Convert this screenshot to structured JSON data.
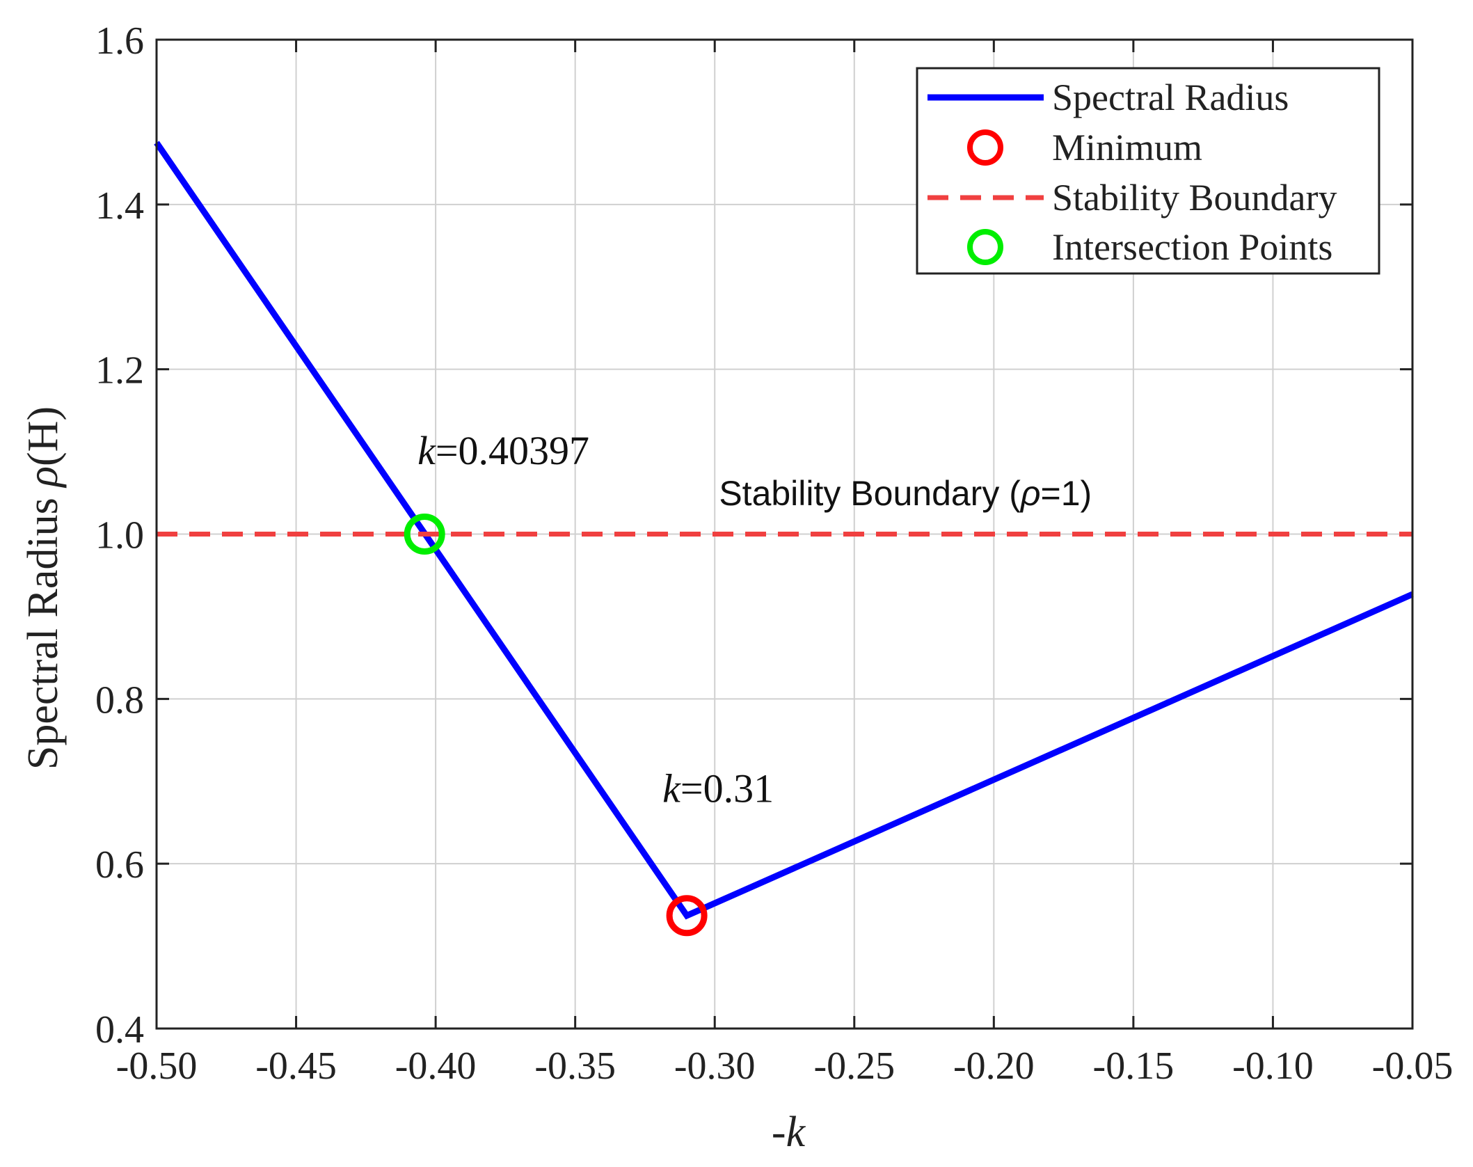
{
  "chart_data": {
    "type": "line",
    "title": "",
    "xlabel": "-k",
    "xlabel_parts": {
      "prefix": "-",
      "var": "k"
    },
    "ylabel": "Spectral Radius ρ(H)",
    "ylabel_parts": {
      "text": "Spectral Radius ",
      "symbol": "ρ",
      "suffix": "(H)"
    },
    "xlim": [
      -0.5,
      -0.05
    ],
    "ylim": [
      0.4,
      1.6
    ],
    "grid": true,
    "xticks": [
      -0.5,
      -0.45,
      -0.4,
      -0.35,
      -0.3,
      -0.25,
      -0.2,
      -0.15,
      -0.1,
      -0.05
    ],
    "xtick_labels": [
      "-0.50",
      "-0.45",
      "-0.40",
      "-0.35",
      "-0.30",
      "-0.25",
      "-0.20",
      "-0.15",
      "-0.10",
      "-0.05"
    ],
    "yticks": [
      0.4,
      0.6,
      0.8,
      1.0,
      1.2,
      1.4,
      1.6
    ],
    "ytick_labels": [
      "0.4",
      "0.6",
      "0.8",
      "1.0",
      "1.2",
      "1.4",
      "1.6"
    ],
    "series": [
      {
        "name": "Spectral Radius",
        "style": "solid",
        "color": "#0000ff",
        "x": [
          -0.5,
          -0.31,
          -0.05
        ],
        "y": [
          1.475,
          0.537,
          0.927
        ]
      },
      {
        "name": "Stability Boundary",
        "style": "dashed",
        "color": "#f04040",
        "x": [
          -0.5,
          -0.05
        ],
        "y": [
          1.0,
          1.0
        ]
      }
    ],
    "markers": [
      {
        "name": "Minimum",
        "x": -0.31,
        "y": 0.537,
        "color": "#ff0000"
      },
      {
        "name": "Intersection Points",
        "x": -0.40397,
        "y": 1.0,
        "color": "#00ee00"
      }
    ],
    "legend": {
      "position": "top-right",
      "entries": [
        "Spectral Radius",
        "Minimum",
        "Stability Boundary",
        "Intersection Points"
      ]
    },
    "annotations": [
      {
        "var": "k",
        "text": "=0.40397",
        "x": -0.404,
        "y": 1.085
      },
      {
        "var": "k",
        "text": "=0.31",
        "x": -0.31,
        "y": 0.675
      }
    ],
    "boundary_label": {
      "prefix": "Stability Boundary (",
      "symbol": "ρ",
      "suffix": "=1)",
      "x": -0.2,
      "y": 1.035
    }
  }
}
